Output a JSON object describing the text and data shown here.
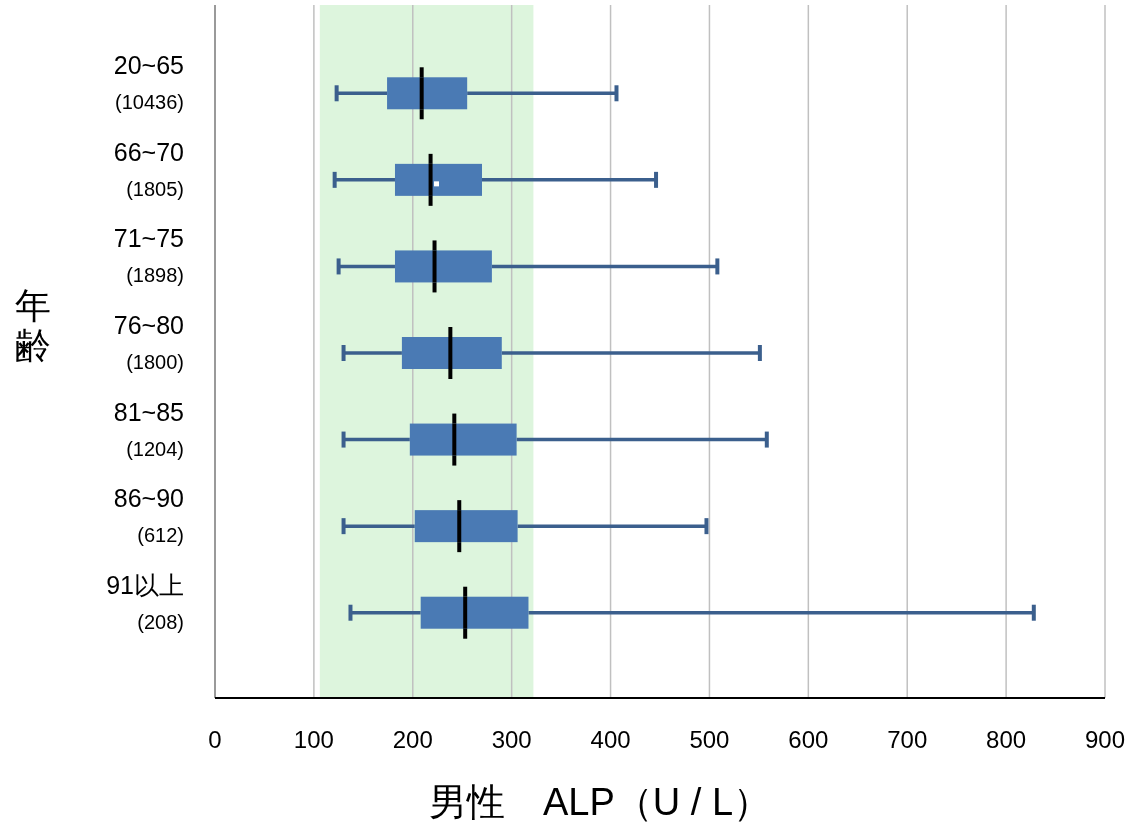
{
  "chart_data": {
    "type": "box",
    "orientation": "horizontal",
    "xlabel": "男性　ALP（U / L）",
    "ylabel": "年齢",
    "categories": [
      "20~65\n(10436)",
      "66~70\n(1805)",
      "71~75\n(1898)",
      "76~80\n(1800)",
      "81~85\n(1204)",
      "86~90\n(612)",
      "91以上\n(208)"
    ],
    "color": "#4a7ab4",
    "boxes": [
      {
        "low": 123,
        "q1": 174,
        "median": 209,
        "q3": 255,
        "high": 406
      },
      {
        "low": 121,
        "q1": 182,
        "median": 218,
        "q3": 270,
        "high": 446,
        "mean": 224
      },
      {
        "low": 125,
        "q1": 182,
        "median": 222,
        "q3": 280,
        "high": 508
      },
      {
        "low": 130,
        "q1": 189,
        "median": 238,
        "q3": 290,
        "high": 551
      },
      {
        "low": 130,
        "q1": 197,
        "median": 242,
        "q3": 305,
        "high": 558
      },
      {
        "low": 130,
        "q1": 202,
        "median": 247,
        "q3": 306,
        "high": 497
      },
      {
        "low": 137,
        "q1": 208,
        "median": 253,
        "q3": 317,
        "high": 828
      }
    ],
    "xlim": [
      0,
      900
    ],
    "xticks": [
      0,
      100,
      200,
      300,
      400,
      500,
      600,
      700,
      800,
      900
    ],
    "grid": "x",
    "bands": [
      {
        "axis": "x",
        "from": 106,
        "to": 322,
        "color": "#ddf5dd"
      }
    ]
  }
}
